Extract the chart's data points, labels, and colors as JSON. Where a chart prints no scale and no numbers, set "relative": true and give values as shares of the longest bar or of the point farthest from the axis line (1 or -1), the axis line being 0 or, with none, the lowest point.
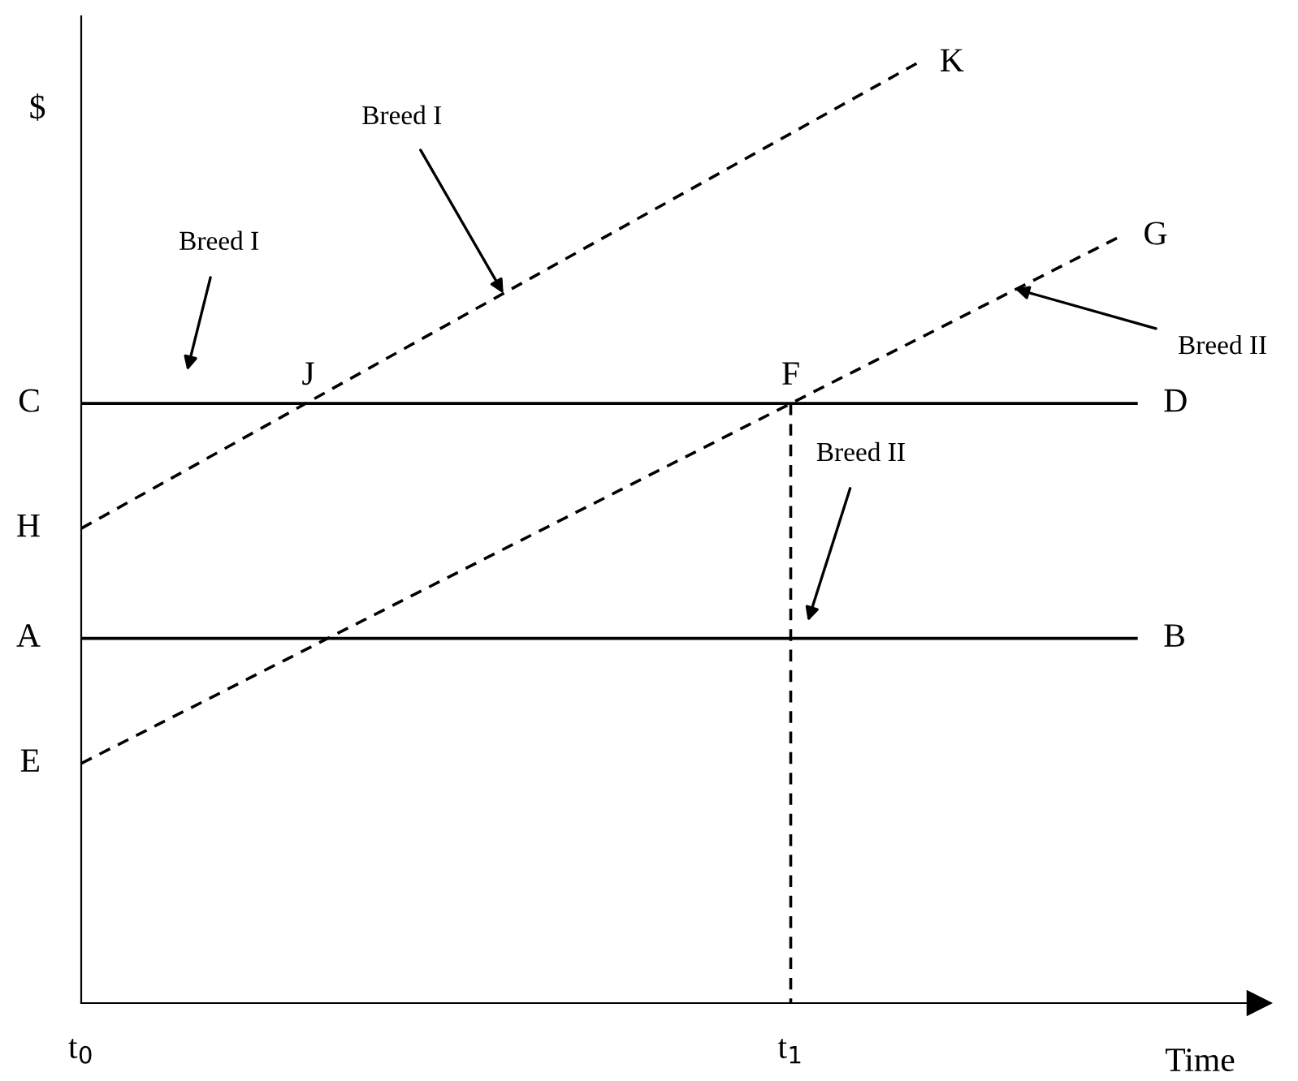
{
  "chart_data": {
    "type": "line",
    "relative": true,
    "ylabel": "$",
    "xlabel": "Time",
    "xlim": [
      0,
      1.66
    ],
    "xticks": [
      {
        "value": 0,
        "label": "t$_{0}$"
      },
      {
        "value": 1,
        "label": "t$_{1}$"
      }
    ],
    "series": [
      {
        "color": "#000000",
        "line_style": "solid",
        "x": [
          0,
          1.487
        ],
        "values": [
          0.638,
          0.638
        ]
      },
      {
        "color": "#000000",
        "line_style": "solid",
        "x": [
          0,
          1.487
        ],
        "values": [
          0.388,
          0.388
        ]
      },
      {
        "color": "#000000",
        "line_style": "dashed",
        "x": [
          0,
          1.178
        ],
        "values": [
          0.505,
          1.0
        ]
      },
      {
        "color": "#000000",
        "line_style": "dashed",
        "x": [
          0,
          1.465
        ],
        "values": [
          0.255,
          0.816
        ]
      },
      {
        "color": "#000000",
        "line_style": "dashed",
        "x": [
          1,
          1
        ],
        "values": [
          0.638,
          0
        ]
      }
    ],
    "annotations": [
      {
        "text": "C",
        "x": 0,
        "y": 0.638
      },
      {
        "text": "H",
        "x": 0,
        "y": 0.505
      },
      {
        "text": "A",
        "x": 0,
        "y": 0.388
      },
      {
        "text": "E",
        "x": 0,
        "y": 0.255
      },
      {
        "text": "J",
        "x": 0.32,
        "y": 0.638
      },
      {
        "text": "F",
        "x": 1,
        "y": 0.638
      },
      {
        "text": "K",
        "x": 1.178,
        "y": 1.0
      },
      {
        "text": "G",
        "x": 1.465,
        "y": 0.816
      },
      {
        "text": "D",
        "x": 1.487,
        "y": 0.638
      },
      {
        "text": "B",
        "x": 1.487,
        "y": 0.388
      },
      "Breed I",
      {
        "text": "Breed I",
        "x": 0.595,
        "y": 0.755
      },
      {
        "text": "Breed II",
        "x": 1.316,
        "y": 0.76
      },
      "Breed II"
    ]
  }
}
